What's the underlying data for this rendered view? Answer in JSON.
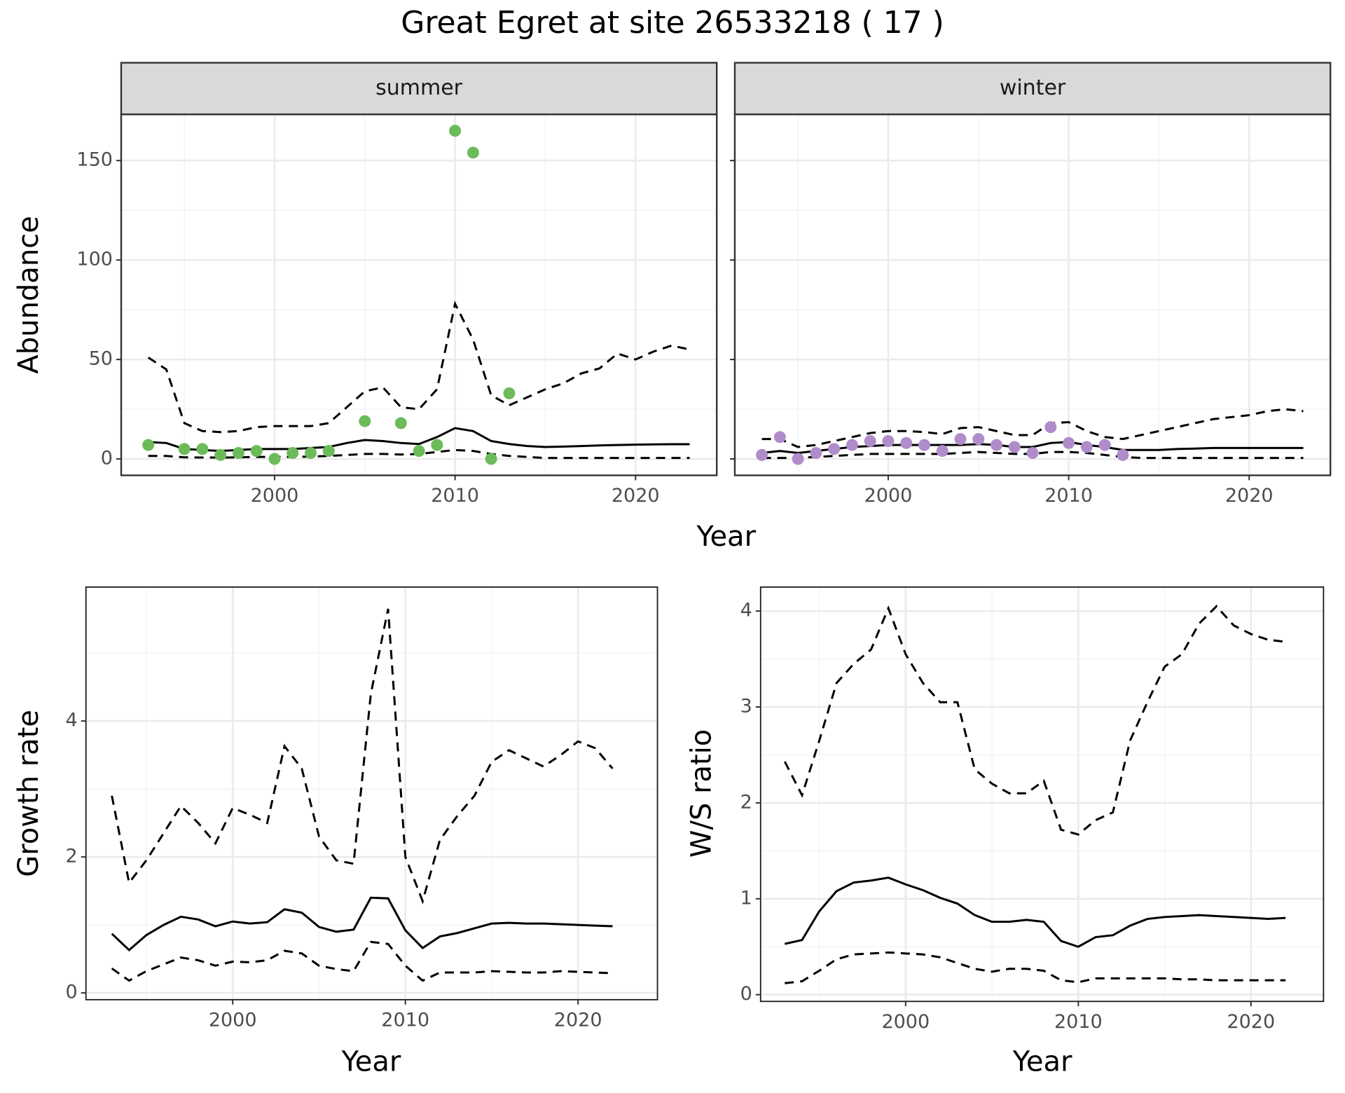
{
  "title": "Great Egret at site 26533218 ( 17 )",
  "chart_data": [
    {
      "type": "line",
      "title": "summer",
      "xlabel": "Year",
      "ylabel": "Abundance",
      "xlim": [
        1991.5,
        2024.5
      ],
      "ylim": [
        -8.25,
        173.25
      ],
      "xticks": [
        2000,
        2010,
        2020
      ],
      "yticks": [
        0,
        50,
        100,
        150
      ],
      "minor_xticks": [
        1995,
        2005,
        2015
      ],
      "minor_yticks": [
        25,
        75,
        125
      ],
      "grid": true,
      "ytick_labels": true,
      "series": [
        {
          "style": "dashed",
          "color": "#000000",
          "x": [
            1993,
            1994,
            1995,
            1996,
            1997,
            1998,
            1999,
            2000,
            2001,
            2002,
            2003,
            2004,
            2005,
            2006,
            2007,
            2008,
            2009,
            2010,
            2011,
            2012,
            2013,
            2014,
            2015,
            2016,
            2017,
            2018,
            2019,
            2020,
            2021,
            2022,
            2023
          ],
          "values": [
            51,
            45,
            18,
            14,
            13.5,
            14,
            16,
            16.5,
            16.5,
            16.5,
            18,
            26,
            34,
            36,
            26,
            25,
            35,
            78,
            60,
            32,
            27,
            31,
            35,
            38,
            43,
            45.5,
            53,
            50,
            54,
            57,
            55
          ]
        },
        {
          "style": "dashed",
          "color": "#000000",
          "x": [
            1993,
            1994,
            1995,
            1996,
            1997,
            1998,
            1999,
            2000,
            2001,
            2002,
            2003,
            2004,
            2005,
            2006,
            2007,
            2008,
            2009,
            2010,
            2011,
            2012,
            2013,
            2014,
            2015,
            2016,
            2017,
            2018,
            2019,
            2020,
            2021,
            2022,
            2023
          ],
          "values": [
            1.5,
            1.5,
            0.8,
            0.7,
            0.7,
            0.8,
            1,
            1,
            1,
            1.2,
            1.5,
            2,
            2.5,
            2.5,
            2.2,
            2.5,
            3.5,
            4.5,
            4,
            2.5,
            1.5,
            1,
            0.5,
            0.5,
            0.5,
            0.5,
            0.5,
            0.5,
            0.5,
            0.5,
            0.5
          ]
        },
        {
          "style": "solid",
          "color": "#000000",
          "x": [
            1993,
            1994,
            1995,
            1996,
            1997,
            1998,
            1999,
            2000,
            2001,
            2002,
            2003,
            2004,
            2005,
            2006,
            2007,
            2008,
            2009,
            2010,
            2011,
            2012,
            2013,
            2014,
            2015,
            2016,
            2017,
            2018,
            2019,
            2020,
            2021,
            2022,
            2023
          ],
          "values": [
            8.5,
            8,
            5,
            4.5,
            4,
            4.5,
            5,
            5,
            5,
            5.5,
            6,
            8,
            9.5,
            9,
            8,
            7.5,
            11,
            15.5,
            14,
            9,
            7.5,
            6.5,
            6,
            6.2,
            6.5,
            6.8,
            7,
            7.2,
            7.3,
            7.4,
            7.4
          ]
        },
        {
          "style": "points",
          "color": "#6cbb5a",
          "x": [
            1993,
            1995,
            1996,
            1997,
            1998,
            1999,
            2000,
            2001,
            2002,
            2003,
            2005,
            2007,
            2008,
            2009,
            2010,
            2011,
            2012,
            2013
          ],
          "values": [
            7,
            5,
            5,
            2,
            3,
            4,
            0,
            3,
            3,
            4,
            19,
            18,
            4,
            7,
            165,
            154,
            0,
            33
          ]
        }
      ]
    },
    {
      "type": "line",
      "title": "winter",
      "xlim": [
        1991.5,
        2024.5
      ],
      "ylim": [
        -8.25,
        173.25
      ],
      "xticks": [
        2000,
        2010,
        2020
      ],
      "yticks": [
        0,
        50,
        100,
        150
      ],
      "minor_xticks": [
        1995,
        2005,
        2015
      ],
      "minor_yticks": [
        25,
        75,
        125
      ],
      "grid": true,
      "ytick_labels": false,
      "series": [
        {
          "style": "dashed",
          "color": "#000000",
          "x": [
            1993,
            1994,
            1995,
            1996,
            1997,
            1998,
            1999,
            2000,
            2001,
            2002,
            2003,
            2004,
            2005,
            2006,
            2007,
            2008,
            2009,
            2010,
            2011,
            2012,
            2013,
            2014,
            2015,
            2016,
            2017,
            2018,
            2019,
            2020,
            2021,
            2022,
            2023
          ],
          "values": [
            10,
            10,
            6,
            7,
            9,
            11,
            13,
            14,
            14,
            13.5,
            12.5,
            15.5,
            16,
            14,
            12,
            12,
            18,
            18.5,
            14,
            11,
            10,
            12,
            14,
            16,
            18,
            20,
            21,
            22,
            24,
            25,
            24
          ]
        },
        {
          "style": "dashed",
          "color": "#000000",
          "x": [
            1993,
            1994,
            1995,
            1996,
            1997,
            1998,
            1999,
            2000,
            2001,
            2002,
            2003,
            2004,
            2005,
            2006,
            2007,
            2008,
            2009,
            2010,
            2011,
            2012,
            2013,
            2014,
            2015,
            2016,
            2017,
            2018,
            2019,
            2020,
            2021,
            2022,
            2023
          ],
          "values": [
            0.5,
            0.5,
            0.5,
            1,
            1.5,
            2,
            2.5,
            2.5,
            2.5,
            2.5,
            2.5,
            3,
            3.5,
            3,
            2.5,
            2.5,
            3.5,
            3.5,
            3,
            2,
            1,
            0.5,
            0.5,
            0.5,
            0.5,
            0.5,
            0.5,
            0.5,
            0.5,
            0.5,
            0.5
          ]
        },
        {
          "style": "solid",
          "color": "#000000",
          "x": [
            1993,
            1994,
            1995,
            1996,
            1997,
            1998,
            1999,
            2000,
            2001,
            2002,
            2003,
            2004,
            2005,
            2006,
            2007,
            2008,
            2009,
            2010,
            2011,
            2012,
            2013,
            2014,
            2015,
            2016,
            2017,
            2018,
            2019,
            2020,
            2021,
            2022,
            2023
          ],
          "values": [
            3,
            4,
            3,
            4,
            5,
            6,
            6.5,
            7,
            7,
            7,
            7,
            7,
            7.5,
            7,
            6,
            6,
            8,
            8.5,
            7,
            6,
            4.5,
            4.5,
            4.5,
            5,
            5.2,
            5.5,
            5.5,
            5.5,
            5.5,
            5.5,
            5.5
          ]
        },
        {
          "style": "points",
          "color": "#b08ccb",
          "x": [
            1993,
            1994,
            1995,
            1996,
            1997,
            1998,
            1999,
            2000,
            2001,
            2002,
            2003,
            2004,
            2005,
            2006,
            2007,
            2008,
            2009,
            2010,
            2011,
            2012,
            2013
          ],
          "values": [
            2,
            11,
            0,
            3,
            5,
            7,
            9,
            9,
            8,
            7,
            4,
            10,
            10,
            7,
            6,
            3,
            16,
            8,
            6,
            7,
            2
          ]
        }
      ]
    },
    {
      "type": "line",
      "xlabel": "Year",
      "ylabel": "Growth rate",
      "xlim": [
        1991.5,
        2024.6
      ],
      "ylim": [
        -0.1,
        5.97
      ],
      "xticks": [
        2000,
        2010,
        2020
      ],
      "yticks": [
        0,
        2,
        4
      ],
      "minor_xticks": [
        1995,
        2005,
        2015
      ],
      "minor_yticks": [
        1,
        3,
        5
      ],
      "grid": true,
      "ytick_labels": true,
      "series": [
        {
          "style": "dashed",
          "color": "#000000",
          "x": [
            1993,
            1994,
            1995,
            1996,
            1997,
            1998,
            1999,
            2000,
            2001,
            2002,
            2003,
            2004,
            2005,
            2006,
            2007,
            2008,
            2009,
            2010,
            2011,
            2012,
            2013,
            2014,
            2015,
            2016,
            2017,
            2018,
            2019,
            2020,
            2021,
            2022
          ],
          "values": [
            2.9,
            1.62,
            1.95,
            2.35,
            2.75,
            2.5,
            2.2,
            2.72,
            2.62,
            2.5,
            3.63,
            3.3,
            2.3,
            1.95,
            1.9,
            4.4,
            5.65,
            2.0,
            1.35,
            2.25,
            2.6,
            2.9,
            3.4,
            3.57,
            3.45,
            3.33,
            3.5,
            3.7,
            3.6,
            3.3
          ]
        },
        {
          "style": "dashed",
          "color": "#000000",
          "x": [
            1993,
            1994,
            1995,
            1996,
            1997,
            1998,
            1999,
            2000,
            2001,
            2002,
            2003,
            2004,
            2005,
            2006,
            2007,
            2008,
            2009,
            2010,
            2011,
            2012,
            2013,
            2014,
            2015,
            2016,
            2017,
            2018,
            2019,
            2020,
            2021,
            2022
          ],
          "values": [
            0.36,
            0.18,
            0.32,
            0.42,
            0.52,
            0.48,
            0.4,
            0.46,
            0.45,
            0.48,
            0.62,
            0.58,
            0.4,
            0.35,
            0.32,
            0.75,
            0.72,
            0.4,
            0.18,
            0.3,
            0.3,
            0.3,
            0.32,
            0.31,
            0.3,
            0.3,
            0.32,
            0.31,
            0.3,
            0.29
          ]
        },
        {
          "style": "solid",
          "color": "#000000",
          "x": [
            1993,
            1994,
            1995,
            1996,
            1997,
            1998,
            1999,
            2000,
            2001,
            2002,
            2003,
            2004,
            2005,
            2006,
            2007,
            2008,
            2009,
            2010,
            2011,
            2012,
            2013,
            2014,
            2015,
            2016,
            2017,
            2018,
            2019,
            2020,
            2021,
            2022
          ],
          "values": [
            0.87,
            0.63,
            0.85,
            1.0,
            1.12,
            1.08,
            0.98,
            1.05,
            1.02,
            1.04,
            1.23,
            1.18,
            0.97,
            0.9,
            0.93,
            1.4,
            1.39,
            0.92,
            0.66,
            0.83,
            0.88,
            0.95,
            1.02,
            1.03,
            1.02,
            1.02,
            1.01,
            1.0,
            0.99,
            0.98
          ]
        }
      ]
    },
    {
      "type": "line",
      "xlabel": "Year",
      "ylabel": "W/S ratio",
      "xlim": [
        1991.6,
        2024.2
      ],
      "ylim": [
        -0.07,
        4.25
      ],
      "xticks": [
        2000,
        2010,
        2020
      ],
      "yticks": [
        0,
        1,
        2,
        3,
        4
      ],
      "minor_xticks": [
        1995,
        2005,
        2015
      ],
      "minor_yticks": [
        0.5,
        1.5,
        2.5,
        3.5
      ],
      "grid": true,
      "ytick_labels": true,
      "series": [
        {
          "style": "dashed",
          "color": "#000000",
          "x": [
            1993,
            1994,
            1995,
            1996,
            1997,
            1998,
            1999,
            2000,
            2001,
            2002,
            2003,
            2004,
            2005,
            2006,
            2007,
            2008,
            2009,
            2010,
            2011,
            2012,
            2013,
            2014,
            2015,
            2016,
            2017,
            2018,
            2019,
            2020,
            2021,
            2022
          ],
          "values": [
            2.43,
            2.08,
            2.65,
            3.25,
            3.45,
            3.6,
            4.03,
            3.55,
            3.25,
            3.05,
            3.05,
            2.35,
            2.2,
            2.1,
            2.1,
            2.23,
            1.72,
            1.67,
            1.82,
            1.9,
            2.65,
            3.05,
            3.42,
            3.55,
            3.87,
            4.05,
            3.85,
            3.76,
            3.7,
            3.68
          ]
        },
        {
          "style": "dashed",
          "color": "#000000",
          "x": [
            1993,
            1994,
            1995,
            1996,
            1997,
            1998,
            1999,
            2000,
            2001,
            2002,
            2003,
            2004,
            2005,
            2006,
            2007,
            2008,
            2009,
            2010,
            2011,
            2012,
            2013,
            2014,
            2015,
            2016,
            2017,
            2018,
            2019,
            2020,
            2021,
            2022
          ],
          "values": [
            0.12,
            0.14,
            0.25,
            0.37,
            0.42,
            0.43,
            0.44,
            0.43,
            0.42,
            0.39,
            0.33,
            0.27,
            0.24,
            0.27,
            0.27,
            0.25,
            0.15,
            0.13,
            0.17,
            0.17,
            0.17,
            0.17,
            0.17,
            0.16,
            0.16,
            0.15,
            0.15,
            0.15,
            0.15,
            0.15
          ]
        },
        {
          "style": "solid",
          "color": "#000000",
          "x": [
            1993,
            1994,
            1995,
            1996,
            1997,
            1998,
            1999,
            2000,
            2001,
            2002,
            2003,
            2004,
            2005,
            2006,
            2007,
            2008,
            2009,
            2010,
            2011,
            2012,
            2013,
            2014,
            2015,
            2016,
            2017,
            2018,
            2019,
            2020,
            2021,
            2022
          ],
          "values": [
            0.53,
            0.57,
            0.87,
            1.08,
            1.17,
            1.19,
            1.22,
            1.15,
            1.09,
            1.01,
            0.95,
            0.83,
            0.76,
            0.76,
            0.78,
            0.76,
            0.56,
            0.5,
            0.6,
            0.62,
            0.72,
            0.79,
            0.81,
            0.82,
            0.83,
            0.82,
            0.81,
            0.8,
            0.79,
            0.8
          ]
        }
      ]
    }
  ]
}
